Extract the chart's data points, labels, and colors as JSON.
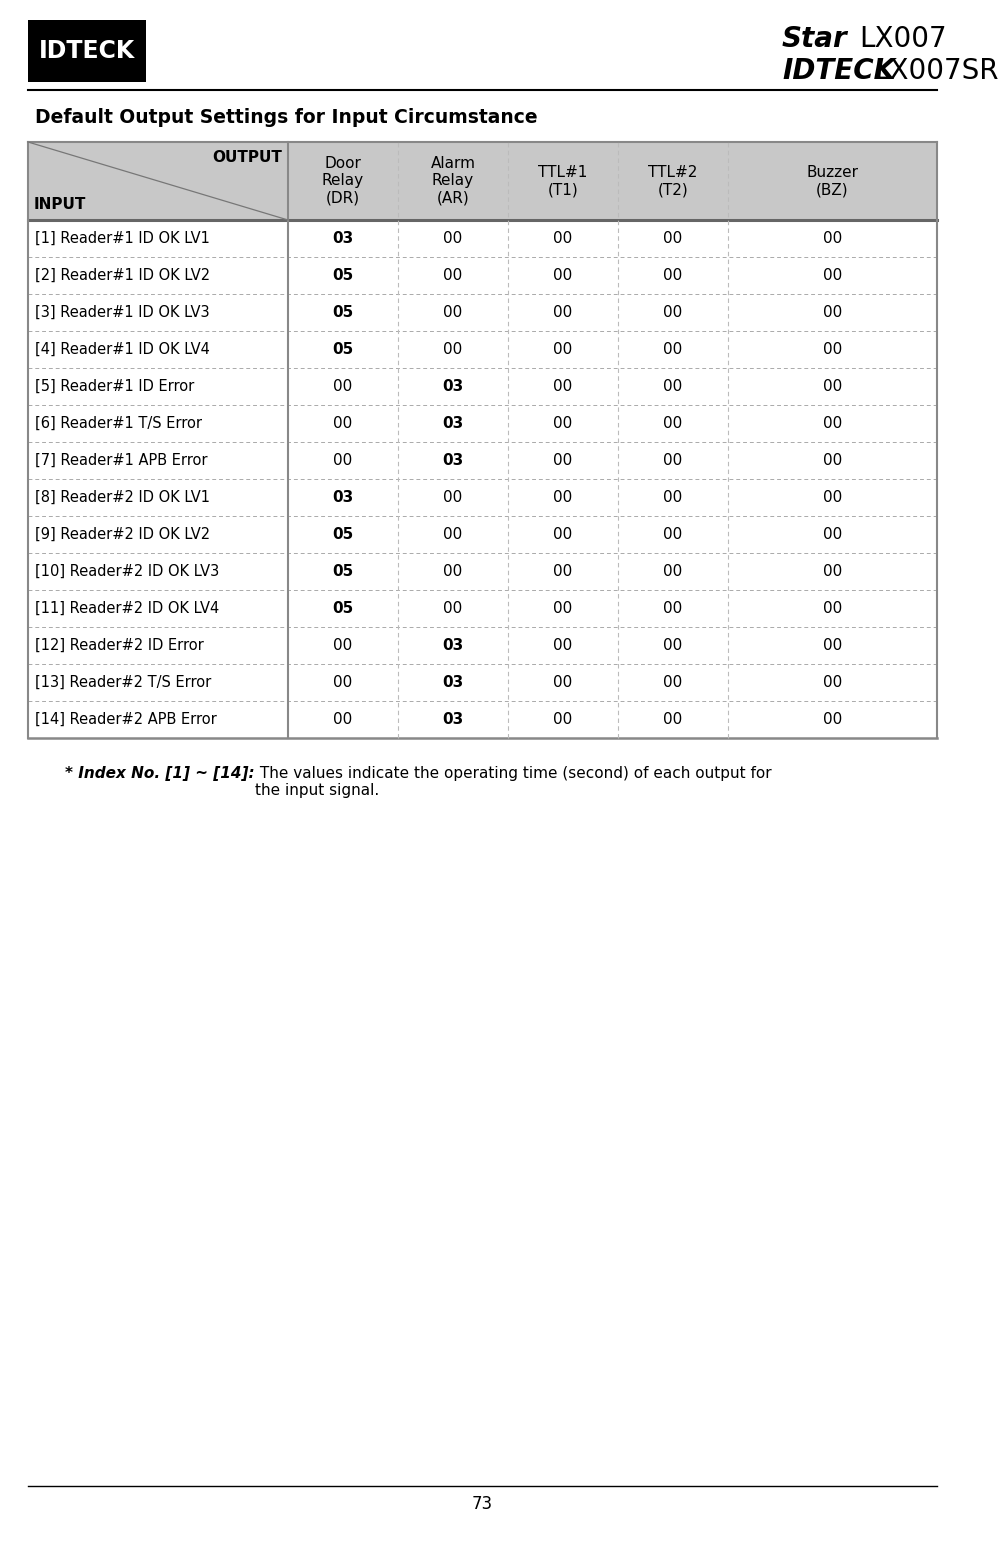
{
  "title": "Default Output Settings for Input Circumstance",
  "page_number": "73",
  "header_bg": "#c8c8c8",
  "col_headers": [
    "Door\nRelay\n(DR)",
    "Alarm\nRelay\n(AR)",
    "TTL#1\n(T1)",
    "TTL#2\n(T2)",
    "Buzzer\n(BZ)"
  ],
  "rows": [
    {
      "label": "[1] Reader#1 ID OK LV1",
      "dr": "03",
      "ar": "00",
      "t1": "00",
      "t2": "00",
      "bz": "00",
      "dr_bold": true,
      "ar_bold": false
    },
    {
      "label": "[2] Reader#1 ID OK LV2",
      "dr": "05",
      "ar": "00",
      "t1": "00",
      "t2": "00",
      "bz": "00",
      "dr_bold": true,
      "ar_bold": false
    },
    {
      "label": "[3] Reader#1 ID OK LV3",
      "dr": "05",
      "ar": "00",
      "t1": "00",
      "t2": "00",
      "bz": "00",
      "dr_bold": true,
      "ar_bold": false
    },
    {
      "label": "[4] Reader#1 ID OK LV4",
      "dr": "05",
      "ar": "00",
      "t1": "00",
      "t2": "00",
      "bz": "00",
      "dr_bold": true,
      "ar_bold": false
    },
    {
      "label": "[5] Reader#1 ID Error",
      "dr": "00",
      "ar": "03",
      "t1": "00",
      "t2": "00",
      "bz": "00",
      "dr_bold": false,
      "ar_bold": true
    },
    {
      "label": "[6] Reader#1 T/S Error",
      "dr": "00",
      "ar": "03",
      "t1": "00",
      "t2": "00",
      "bz": "00",
      "dr_bold": false,
      "ar_bold": true
    },
    {
      "label": "[7] Reader#1 APB Error",
      "dr": "00",
      "ar": "03",
      "t1": "00",
      "t2": "00",
      "bz": "00",
      "dr_bold": false,
      "ar_bold": true
    },
    {
      "label": "[8] Reader#2 ID OK LV1",
      "dr": "03",
      "ar": "00",
      "t1": "00",
      "t2": "00",
      "bz": "00",
      "dr_bold": true,
      "ar_bold": false
    },
    {
      "label": "[9] Reader#2 ID OK LV2",
      "dr": "05",
      "ar": "00",
      "t1": "00",
      "t2": "00",
      "bz": "00",
      "dr_bold": true,
      "ar_bold": false
    },
    {
      "label": "[10] Reader#2 ID OK LV3",
      "dr": "05",
      "ar": "00",
      "t1": "00",
      "t2": "00",
      "bz": "00",
      "dr_bold": true,
      "ar_bold": false
    },
    {
      "label": "[11] Reader#2 ID OK LV4",
      "dr": "05",
      "ar": "00",
      "t1": "00",
      "t2": "00",
      "bz": "00",
      "dr_bold": true,
      "ar_bold": false
    },
    {
      "label": "[12] Reader#2 ID Error",
      "dr": "00",
      "ar": "03",
      "t1": "00",
      "t2": "00",
      "bz": "00",
      "dr_bold": false,
      "ar_bold": true
    },
    {
      "label": "[13] Reader#2 T/S Error",
      "dr": "00",
      "ar": "03",
      "t1": "00",
      "t2": "00",
      "bz": "00",
      "dr_bold": false,
      "ar_bold": true
    },
    {
      "label": "[14] Reader#2 APB Error",
      "dr": "00",
      "ar": "03",
      "t1": "00",
      "t2": "00",
      "bz": "00",
      "dr_bold": false,
      "ar_bold": true
    }
  ],
  "footnote_italic": "* Index No. [1] ~ [14]:",
  "footnote_normal": " The values indicate the operating time (second) of each output for\nthe input signal.",
  "logo_text": "IDTECK",
  "brand_line1_italic": "Star",
  "brand_line1_normal": " LX007",
  "brand_line2_italic": "IDTECK",
  "brand_line2_normal": " LX007SR"
}
